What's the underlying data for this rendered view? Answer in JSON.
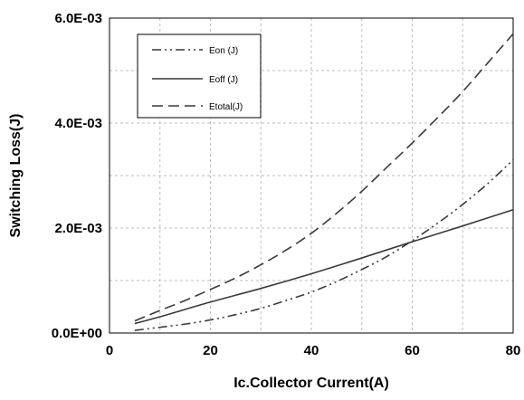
{
  "chart_data": {
    "type": "line",
    "xlabel": "Ic.Collector Current(A)",
    "ylabel": "Switching Loss(J)",
    "xlim": [
      0,
      80
    ],
    "ylim": [
      0,
      0.006
    ],
    "x_ticks": [
      0,
      20,
      40,
      60,
      80
    ],
    "x_tick_labels": [
      "0",
      "20",
      "40",
      "60",
      "80"
    ],
    "y_ticks": [
      0,
      0.002,
      0.004,
      0.006
    ],
    "y_tick_labels": [
      "0.0E+00",
      "2.0E-03",
      "4.0E-03",
      "6.0E-03"
    ],
    "x_grid": [
      10,
      20,
      30,
      40,
      50,
      60,
      70,
      80
    ],
    "y_grid": [
      0.001,
      0.002,
      0.003,
      0.004,
      0.005,
      0.006
    ],
    "grid": true,
    "legend_position": "top-left",
    "series": [
      {
        "name": "Eon (J)",
        "line_style": "dash-dot-dot",
        "color": "#3a3a3a",
        "x": [
          5,
          10,
          15,
          20,
          25,
          30,
          35,
          40,
          45,
          50,
          55,
          60,
          65,
          70,
          75,
          80
        ],
        "y": [
          5e-05,
          0.00011,
          0.00017,
          0.00025,
          0.00035,
          0.00047,
          0.00062,
          0.00078,
          0.00098,
          0.00121,
          0.00146,
          0.00176,
          0.00209,
          0.00245,
          0.00285,
          0.0033
        ]
      },
      {
        "name": "Eoff (J)",
        "line_style": "solid",
        "color": "#3a3a3a",
        "x": [
          5,
          10,
          20,
          30,
          40,
          50,
          60,
          70,
          80
        ],
        "y": [
          0.00018,
          0.00031,
          0.00059,
          0.00085,
          0.00113,
          0.00143,
          0.00174,
          0.00204,
          0.00235
        ]
      },
      {
        "name": "Etotal(J)",
        "line_style": "dashed",
        "color": "#3a3a3a",
        "x": [
          5,
          10,
          15,
          20,
          25,
          30,
          35,
          40,
          45,
          50,
          55,
          60,
          65,
          70,
          75,
          80
        ],
        "y": [
          0.00023,
          0.00043,
          0.00062,
          0.00083,
          0.00105,
          0.0013,
          0.00158,
          0.0019,
          0.00228,
          0.0027,
          0.00316,
          0.00362,
          0.0041,
          0.0046,
          0.00515,
          0.0057
        ]
      }
    ]
  }
}
